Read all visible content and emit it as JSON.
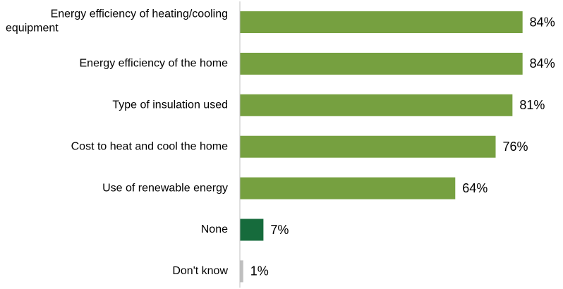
{
  "chart_data": {
    "type": "bar",
    "orientation": "horizontal",
    "title": "",
    "xlabel": "",
    "ylabel": "",
    "xlim": [
      0,
      100
    ],
    "grid": false,
    "legend": "none",
    "categories": [
      [
        "Energy efficiency of heating/cooling",
        "equipment"
      ],
      [
        "Energy efficiency of the home"
      ],
      [
        "Type of insulation used"
      ],
      [
        "Cost to heat and cool the home"
      ],
      [
        "Use of renewable energy"
      ],
      [
        "None"
      ],
      [
        "Don't know"
      ]
    ],
    "values": [
      84,
      84,
      81,
      76,
      64,
      7,
      1
    ],
    "value_labels": [
      "84%",
      "84%",
      "81%",
      "76%",
      "64%",
      "7%",
      "1%"
    ],
    "colors": [
      "#76a040",
      "#76a040",
      "#76a040",
      "#76a040",
      "#76a040",
      "#166b3c",
      "#bfbfbf"
    ],
    "axis_color": "#bfbfbf"
  }
}
